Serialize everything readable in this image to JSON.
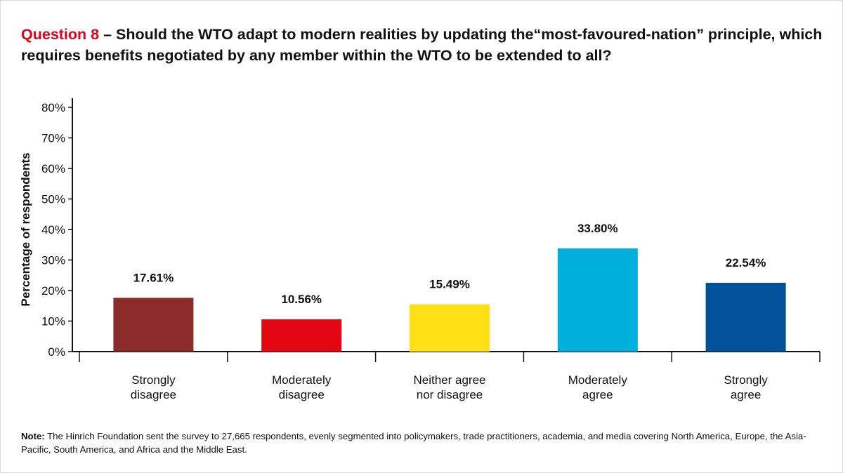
{
  "title": {
    "question": "Question 8",
    "text": " – Should the WTO adapt to modern realities by updating the“most-favoured-nation” principle, which requires benefits negotiated by any member within the WTO to be extended to all?"
  },
  "note": {
    "label": "Note:",
    "text": " The Hinrich Foundation sent the survey to 27,665 respondents, evenly segmented into policymakers, trade practitioners, academia, and media covering North America, Europe, the Asia-Pacific, South America, and Africa and the Middle East."
  },
  "chart_data": {
    "type": "bar",
    "title": "Question 8 – Should the WTO adapt to modern realities by updating the“most-favoured-nation” principle, which requires benefits negotiated by any member within the WTO to be extended to all?",
    "ylabel": "Percentage of respondents",
    "xlabel": "",
    "ylim": [
      0,
      80
    ],
    "yticks": [
      "0%",
      "10%",
      "20%",
      "30%",
      "40%",
      "50%",
      "60%",
      "70%",
      "80%"
    ],
    "grid": false,
    "legend": "none",
    "categories": [
      [
        "Strongly",
        "disagree"
      ],
      [
        "Moderately",
        "disagree"
      ],
      [
        "Neither agree",
        "nor disagree"
      ],
      [
        "Moderately",
        "agree"
      ],
      [
        "Strongly",
        "agree"
      ]
    ],
    "values": [
      17.61,
      10.56,
      15.49,
      33.8,
      22.54
    ],
    "data_labels": [
      "17.61%",
      "10.56%",
      "15.49%",
      "33.80%",
      "22.54%"
    ],
    "colors": [
      "#8b2c2a",
      "#e30613",
      "#ffe014",
      "#00afdb",
      "#00509a"
    ]
  }
}
